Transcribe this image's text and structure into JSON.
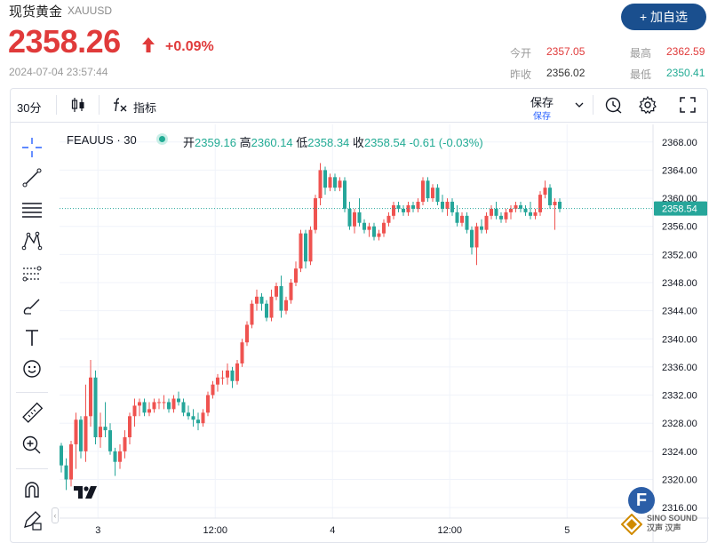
{
  "header": {
    "name": "现货黄金",
    "symbol": "XAUUSD",
    "price": "2358.26",
    "change_pct": "+0.09%",
    "timestamp": "2024-07-04 23:57:44",
    "add_button": "+ 加自选",
    "quotes": {
      "open_label": "今开",
      "open": "2357.05",
      "high_label": "最高",
      "high": "2362.59",
      "prev_label": "昨收",
      "prev": "2356.02",
      "low_label": "最低",
      "low": "2350.41"
    },
    "colors": {
      "up": "#e03a3a",
      "down": "#22ab94",
      "button": "#1a4f8e"
    }
  },
  "toolbar": {
    "interval": "30分",
    "chart_type_icon": "candlestick-icon",
    "indicators_icon": "fx-icon",
    "indicators": "指标",
    "save": "保存",
    "save_sub": "保存",
    "icons": [
      "alert-clock-icon",
      "gear-icon",
      "fullscreen-icon"
    ]
  },
  "left_tools": [
    "crosshair-icon",
    "trend-line-icon",
    "horizontal-lines-icon",
    "pattern-icon",
    "fib-icon",
    "brush-icon",
    "text-icon",
    "emoji-icon",
    "ruler-icon",
    "zoom-in-icon",
    "magnet-icon",
    "lock-pencil-icon"
  ],
  "legend": {
    "symbol": "FEAUUS · 30",
    "open_label": "开",
    "open": "2359.16",
    "high_label": "高",
    "high": "2360.14",
    "low_label": "低",
    "low": "2358.34",
    "close_label": "收",
    "close": "2358.54",
    "change": "-0.61 (-0.03%)"
  },
  "watermark": {
    "badge": "F",
    "text_top": "SINO SOUND",
    "text_bottom": "汉声 汉声"
  },
  "chart_data": {
    "type": "candlestick",
    "symbol": "FEAUUS",
    "interval": "30",
    "last_price_label": "2358.54",
    "ylim": [
      2314.5,
      2370.5
    ],
    "y_ticks": [
      "2368.00",
      "2364.00",
      "2360.00",
      "2356.00",
      "2352.00",
      "2348.00",
      "2344.00",
      "2340.00",
      "2336.00",
      "2332.00",
      "2328.00",
      "2324.00",
      "2320.00",
      "2316.00"
    ],
    "x_ticks": [
      "3",
      "12:00",
      "4",
      "12:00",
      "5"
    ],
    "x_tick_index": [
      7.5,
      31.5,
      55.5,
      79.5,
      103.5
    ],
    "grid": true,
    "up_color": "#ef5350",
    "down_color": "#26a69a",
    "candles": [
      [
        2324.8,
        2325.2,
        2321.0,
        2322.0
      ],
      [
        2322.0,
        2323.0,
        2318.5,
        2320.0
      ],
      [
        2320.0,
        2325.5,
        2319.0,
        2325.0
      ],
      [
        2325.0,
        2329.5,
        2321.5,
        2328.5
      ],
      [
        2328.5,
        2329.0,
        2323.0,
        2324.0
      ],
      [
        2324.0,
        2333.5,
        2322.5,
        2329.0
      ],
      [
        2329.0,
        2337.0,
        2327.5,
        2334.5
      ],
      [
        2334.5,
        2335.5,
        2325.0,
        2326.0
      ],
      [
        2326.0,
        2329.5,
        2324.5,
        2327.5
      ],
      [
        2327.5,
        2331.0,
        2326.0,
        2327.0
      ],
      [
        2327.0,
        2328.0,
        2323.5,
        2324.0
      ],
      [
        2324.0,
        2324.5,
        2320.5,
        2322.5
      ],
      [
        2322.5,
        2325.0,
        2321.5,
        2324.0
      ],
      [
        2324.0,
        2327.0,
        2323.0,
        2326.0
      ],
      [
        2326.0,
        2329.5,
        2325.0,
        2329.0
      ],
      [
        2329.0,
        2331.5,
        2327.5,
        2330.5
      ],
      [
        2330.5,
        2331.5,
        2329.0,
        2331.0
      ],
      [
        2331.0,
        2331.5,
        2329.0,
        2329.5
      ],
      [
        2329.5,
        2331.0,
        2329.0,
        2330.0
      ],
      [
        2330.0,
        2331.5,
        2329.5,
        2331.0
      ],
      [
        2331.0,
        2331.5,
        2330.0,
        2331.0
      ],
      [
        2331.0,
        2332.0,
        2330.0,
        2331.0
      ],
      [
        2331.0,
        2331.5,
        2329.5,
        2330.0
      ],
      [
        2330.0,
        2332.0,
        2329.5,
        2331.5
      ],
      [
        2331.5,
        2332.5,
        2330.5,
        2331.0
      ],
      [
        2331.0,
        2331.5,
        2329.0,
        2329.5
      ],
      [
        2329.5,
        2330.5,
        2328.5,
        2329.0
      ],
      [
        2329.0,
        2330.0,
        2327.5,
        2328.5
      ],
      [
        2328.5,
        2329.5,
        2327.0,
        2328.0
      ],
      [
        2328.0,
        2330.0,
        2327.5,
        2329.5
      ],
      [
        2329.5,
        2332.5,
        2329.0,
        2332.0
      ],
      [
        2332.0,
        2334.0,
        2331.5,
        2333.5
      ],
      [
        2333.5,
        2335.0,
        2332.5,
        2334.5
      ],
      [
        2334.5,
        2335.5,
        2333.5,
        2334.5
      ],
      [
        2334.5,
        2336.5,
        2333.5,
        2335.5
      ],
      [
        2335.5,
        2336.0,
        2333.0,
        2334.0
      ],
      [
        2334.0,
        2337.0,
        2333.5,
        2336.5
      ],
      [
        2336.5,
        2340.0,
        2336.0,
        2339.5
      ],
      [
        2339.5,
        2342.5,
        2339.0,
        2342.0
      ],
      [
        2342.0,
        2345.5,
        2341.5,
        2345.0
      ],
      [
        2345.0,
        2347.0,
        2344.0,
        2346.0
      ],
      [
        2346.0,
        2346.5,
        2344.0,
        2345.0
      ],
      [
        2345.0,
        2345.5,
        2342.5,
        2343.0
      ],
      [
        2343.0,
        2347.0,
        2342.5,
        2346.0
      ],
      [
        2346.0,
        2348.0,
        2345.5,
        2347.5
      ],
      [
        2347.5,
        2349.0,
        2343.0,
        2344.0
      ],
      [
        2344.0,
        2346.0,
        2343.5,
        2345.5
      ],
      [
        2345.5,
        2348.5,
        2345.0,
        2348.0
      ],
      [
        2348.0,
        2351.0,
        2347.5,
        2350.0
      ],
      [
        2350.0,
        2355.5,
        2349.5,
        2355.0
      ],
      [
        2355.0,
        2355.5,
        2350.0,
        2351.0
      ],
      [
        2351.0,
        2356.0,
        2350.5,
        2355.5
      ],
      [
        2355.5,
        2360.5,
        2355.0,
        2360.0
      ],
      [
        2360.0,
        2365.0,
        2359.0,
        2364.0
      ],
      [
        2364.0,
        2364.5,
        2360.5,
        2361.5
      ],
      [
        2361.5,
        2363.5,
        2361.0,
        2363.0
      ],
      [
        2363.0,
        2363.5,
        2361.0,
        2361.5
      ],
      [
        2361.5,
        2363.0,
        2361.0,
        2362.5
      ],
      [
        2362.5,
        2363.0,
        2358.0,
        2358.5
      ],
      [
        2358.5,
        2359.5,
        2355.5,
        2356.0
      ],
      [
        2356.0,
        2358.5,
        2355.0,
        2358.0
      ],
      [
        2358.0,
        2360.0,
        2356.0,
        2356.5
      ],
      [
        2356.5,
        2357.0,
        2355.0,
        2355.5
      ],
      [
        2355.5,
        2356.5,
        2354.5,
        2356.0
      ],
      [
        2356.0,
        2356.5,
        2354.0,
        2354.5
      ],
      [
        2354.5,
        2355.5,
        2354.0,
        2355.0
      ],
      [
        2355.0,
        2357.0,
        2354.5,
        2356.5
      ],
      [
        2356.5,
        2358.0,
        2356.0,
        2357.5
      ],
      [
        2357.5,
        2359.5,
        2357.0,
        2359.0
      ],
      [
        2359.0,
        2359.5,
        2358.0,
        2358.5
      ],
      [
        2358.5,
        2359.0,
        2357.5,
        2358.0
      ],
      [
        2358.0,
        2359.5,
        2357.5,
        2359.0
      ],
      [
        2359.0,
        2359.5,
        2358.0,
        2358.5
      ],
      [
        2358.5,
        2360.0,
        2358.0,
        2359.5
      ],
      [
        2359.5,
        2363.0,
        2359.0,
        2362.5
      ],
      [
        2362.5,
        2363.0,
        2359.5,
        2360.0
      ],
      [
        2360.0,
        2362.0,
        2359.5,
        2361.5
      ],
      [
        2361.5,
        2362.0,
        2359.0,
        2359.5
      ],
      [
        2359.5,
        2360.5,
        2358.0,
        2358.5
      ],
      [
        2358.5,
        2360.0,
        2357.5,
        2359.5
      ],
      [
        2359.5,
        2360.0,
        2357.5,
        2358.0
      ],
      [
        2358.0,
        2359.0,
        2356.0,
        2356.5
      ],
      [
        2356.5,
        2358.0,
        2356.0,
        2357.5
      ],
      [
        2357.5,
        2358.0,
        2355.0,
        2355.5
      ],
      [
        2355.5,
        2356.0,
        2352.0,
        2353.0
      ],
      [
        2353.0,
        2356.5,
        2350.5,
        2356.0
      ],
      [
        2356.0,
        2357.0,
        2355.0,
        2355.5
      ],
      [
        2355.5,
        2358.0,
        2355.0,
        2357.5
      ],
      [
        2357.5,
        2359.0,
        2357.0,
        2358.5
      ],
      [
        2358.5,
        2359.5,
        2357.0,
        2357.5
      ],
      [
        2357.5,
        2358.0,
        2356.5,
        2357.0
      ],
      [
        2357.0,
        2358.5,
        2356.5,
        2358.0
      ],
      [
        2358.0,
        2359.0,
        2357.0,
        2358.5
      ],
      [
        2358.5,
        2359.5,
        2358.0,
        2359.0
      ],
      [
        2359.0,
        2359.5,
        2358.0,
        2358.5
      ],
      [
        2358.5,
        2359.0,
        2357.5,
        2358.0
      ],
      [
        2358.0,
        2359.5,
        2357.0,
        2357.5
      ],
      [
        2357.5,
        2358.5,
        2357.0,
        2358.0
      ],
      [
        2358.0,
        2361.0,
        2357.5,
        2360.5
      ],
      [
        2360.5,
        2362.5,
        2360.0,
        2361.5
      ],
      [
        2361.5,
        2362.0,
        2358.5,
        2359.0
      ],
      [
        2359.0,
        2360.0,
        2355.5,
        2359.5
      ],
      [
        2359.5,
        2360.0,
        2358.0,
        2358.5
      ]
    ]
  }
}
